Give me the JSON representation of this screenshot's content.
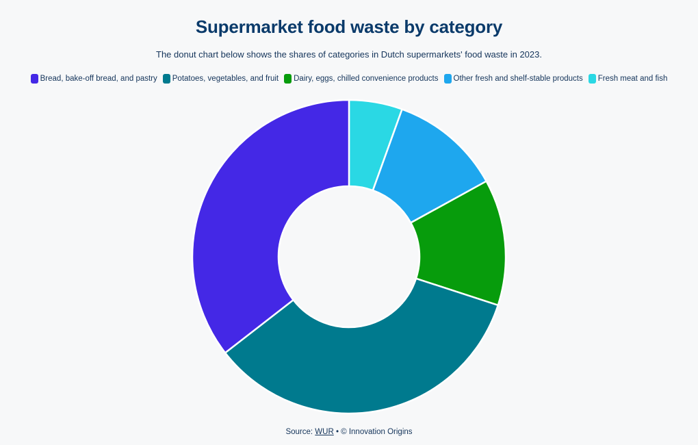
{
  "chart_data": {
    "type": "pie",
    "donut": true,
    "title": "Supermarket food waste by category",
    "subtitle": "The donut chart below shows the shares of categories in Dutch supermarkets' food waste in 2023.",
    "categories": [
      "Fresh meat and fish",
      "Other fresh and shelf-stable products",
      "Dairy, eggs, chilled convenience products",
      "Potatoes, vegetables, and fruit",
      "Bread, bake-off bread, and pastry"
    ],
    "values": [
      5.5,
      11.5,
      13.0,
      34.5,
      35.5
    ],
    "colors": [
      "#2ad8e4",
      "#1ea7ee",
      "#079c0c",
      "#007a8e",
      "#4428e6"
    ],
    "legend_position": "top",
    "legend_order": [
      "Bread, bake-off bread, and pastry",
      "Potatoes, vegetables, and fruit",
      "Dairy, eggs, chilled convenience products",
      "Other fresh and shelf-stable products",
      "Fresh meat and fish"
    ]
  },
  "source": {
    "prefix": "Source:",
    "link": "WUR",
    "suffix": "• © Innovation Origins"
  }
}
